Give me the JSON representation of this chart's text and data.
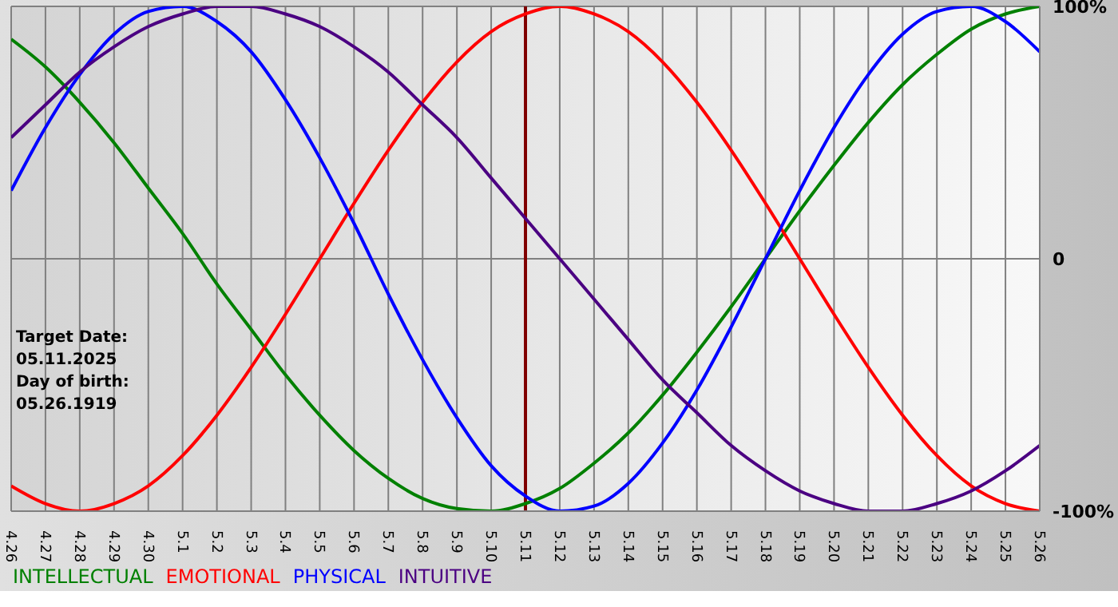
{
  "chart_data": {
    "type": "line",
    "categories": [
      "4.26",
      "4.27",
      "4.28",
      "4.29",
      "4.30",
      "5.1",
      "5.2",
      "5.3",
      "5.4",
      "5.5",
      "5.6",
      "5.7",
      "5.8",
      "5.9",
      "5.10",
      "5.11",
      "5.12",
      "5.13",
      "5.14",
      "5.15",
      "5.16",
      "5.17",
      "5.18",
      "5.19",
      "5.20",
      "5.21",
      "5.22",
      "5.23",
      "5.24",
      "5.25",
      "5.26"
    ],
    "series": [
      {
        "name": "INTELLECTUAL",
        "color": "#008000",
        "values": [
          87,
          76,
          62,
          46,
          28,
          10,
          -10,
          -28,
          -46,
          -62,
          -76,
          -87,
          -95,
          -99,
          -100,
          -97,
          -91,
          -81,
          -69,
          -54,
          -37,
          -19,
          0,
          19,
          37,
          54,
          69,
          81,
          91,
          97,
          100
        ]
      },
      {
        "name": "EMOTIONAL",
        "color": "#ff0000",
        "values": [
          -90,
          -97,
          -100,
          -97,
          -90,
          -78,
          -62,
          -43,
          -22,
          0,
          22,
          43,
          62,
          78,
          90,
          97,
          100,
          97,
          90,
          78,
          62,
          43,
          22,
          0,
          -22,
          -43,
          -62,
          -78,
          -90,
          -97,
          -100
        ]
      },
      {
        "name": "PHYSICAL",
        "color": "#0000ff",
        "values": [
          27,
          52,
          73,
          89,
          98,
          100,
          94,
          82,
          63,
          40,
          14,
          -14,
          -40,
          -63,
          -82,
          -94,
          -100,
          -98,
          -89,
          -73,
          -52,
          -27,
          0,
          27,
          52,
          73,
          89,
          98,
          100,
          94,
          82
        ]
      },
      {
        "name": "INTUITIVE",
        "color": "#4b0082",
        "values": [
          48,
          61,
          74,
          84,
          92,
          97,
          100,
          100,
          97,
          92,
          84,
          74,
          61,
          48,
          32,
          16,
          0,
          -16,
          -32,
          -48,
          -61,
          -74,
          -84,
          -92,
          -97,
          -100,
          -100,
          -97,
          -92,
          -84,
          -74
        ]
      }
    ],
    "ylim": [
      -100,
      100
    ],
    "yticks": [
      {
        "value": 100,
        "label": "100%"
      },
      {
        "value": 0,
        "label": "0"
      },
      {
        "value": -100,
        "label": "-100%"
      }
    ],
    "ref_lines": [
      {
        "axis": "x",
        "value": "5.11",
        "color": "#800000"
      }
    ],
    "annotations": [
      "Target Date: 05.11.2025",
      "Day of birth: 05.26.1919"
    ],
    "grid": true,
    "legend": "bottom",
    "marker": "none",
    "line_style": "solid"
  }
}
